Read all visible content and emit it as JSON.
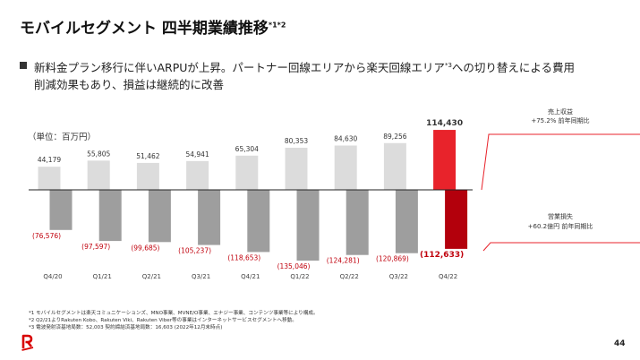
{
  "header": {
    "title": "モバイルセグメント 四半期業績推移",
    "title_sup": "*1*2"
  },
  "bullet": {
    "line1a": "新料金プラン移行に伴いARPUが上昇。パートナー回線エリアから楽天回線エリア",
    "line1_sup": "*3",
    "line1b": "への切り替えによる費用",
    "line2": "削減効果もあり、損益は継続的に改善"
  },
  "unit_label": "（単位：百万円）",
  "callouts": {
    "revenue_line1": "売上収益",
    "revenue_line2": "+75.2% 前年同期比",
    "loss_line1": "営業損失",
    "loss_line2": "+60.2億円 前年同期比"
  },
  "chart_data": {
    "type": "bar",
    "categories": [
      "Q4/20",
      "Q1/21",
      "Q2/21",
      "Q3/21",
      "Q4/21",
      "Q1/22",
      "Q2/22",
      "Q3/22",
      "Q4/22"
    ],
    "series": [
      {
        "values": [
          44179,
          55805,
          51462,
          54941,
          65304,
          80353,
          84630,
          89256,
          114430
        ],
        "labels": [
          "44,179",
          "55,805",
          "51,462",
          "54,941",
          "65,304",
          "80,353",
          "84,630",
          "89,256",
          "114,430"
        ]
      },
      {
        "values": [
          -76576,
          -97597,
          -99685,
          -105237,
          -118653,
          -135046,
          -124281,
          -120869,
          -112633
        ],
        "labels": [
          "(76,576)",
          "(97,597)",
          "(99,685)",
          "(105,237)",
          "(118,653)",
          "(135,046)",
          "(124,281)",
          "(120,869)",
          "(112,633)"
        ]
      }
    ],
    "title": "",
    "xlabel": "",
    "ylabel": "",
    "colors": {
      "revenue": "#dcdcdc",
      "revenue_latest": "#e8232b",
      "loss": "#9e9e9e",
      "loss_latest": "#b3000c",
      "loss_label": "#c0000c"
    }
  },
  "footnotes": [
    "*1 モバイルセグメントは楽天コミュニケーションズ、MNO事業、MVNE/O事業、エナジー事業、コンテンツ事業等により構成。",
    "*2 Q2/21よりRakuten Kobo、Rakuten Viki、Rakuten Viber等の事業はインターネットサービスセグメントへ移動。",
    "*3 電波発射済基地局数：52,003 契約締結済基地局数：16,603 (2022年12月末時点)"
  ],
  "page_number": "44",
  "logo_letter": "R"
}
